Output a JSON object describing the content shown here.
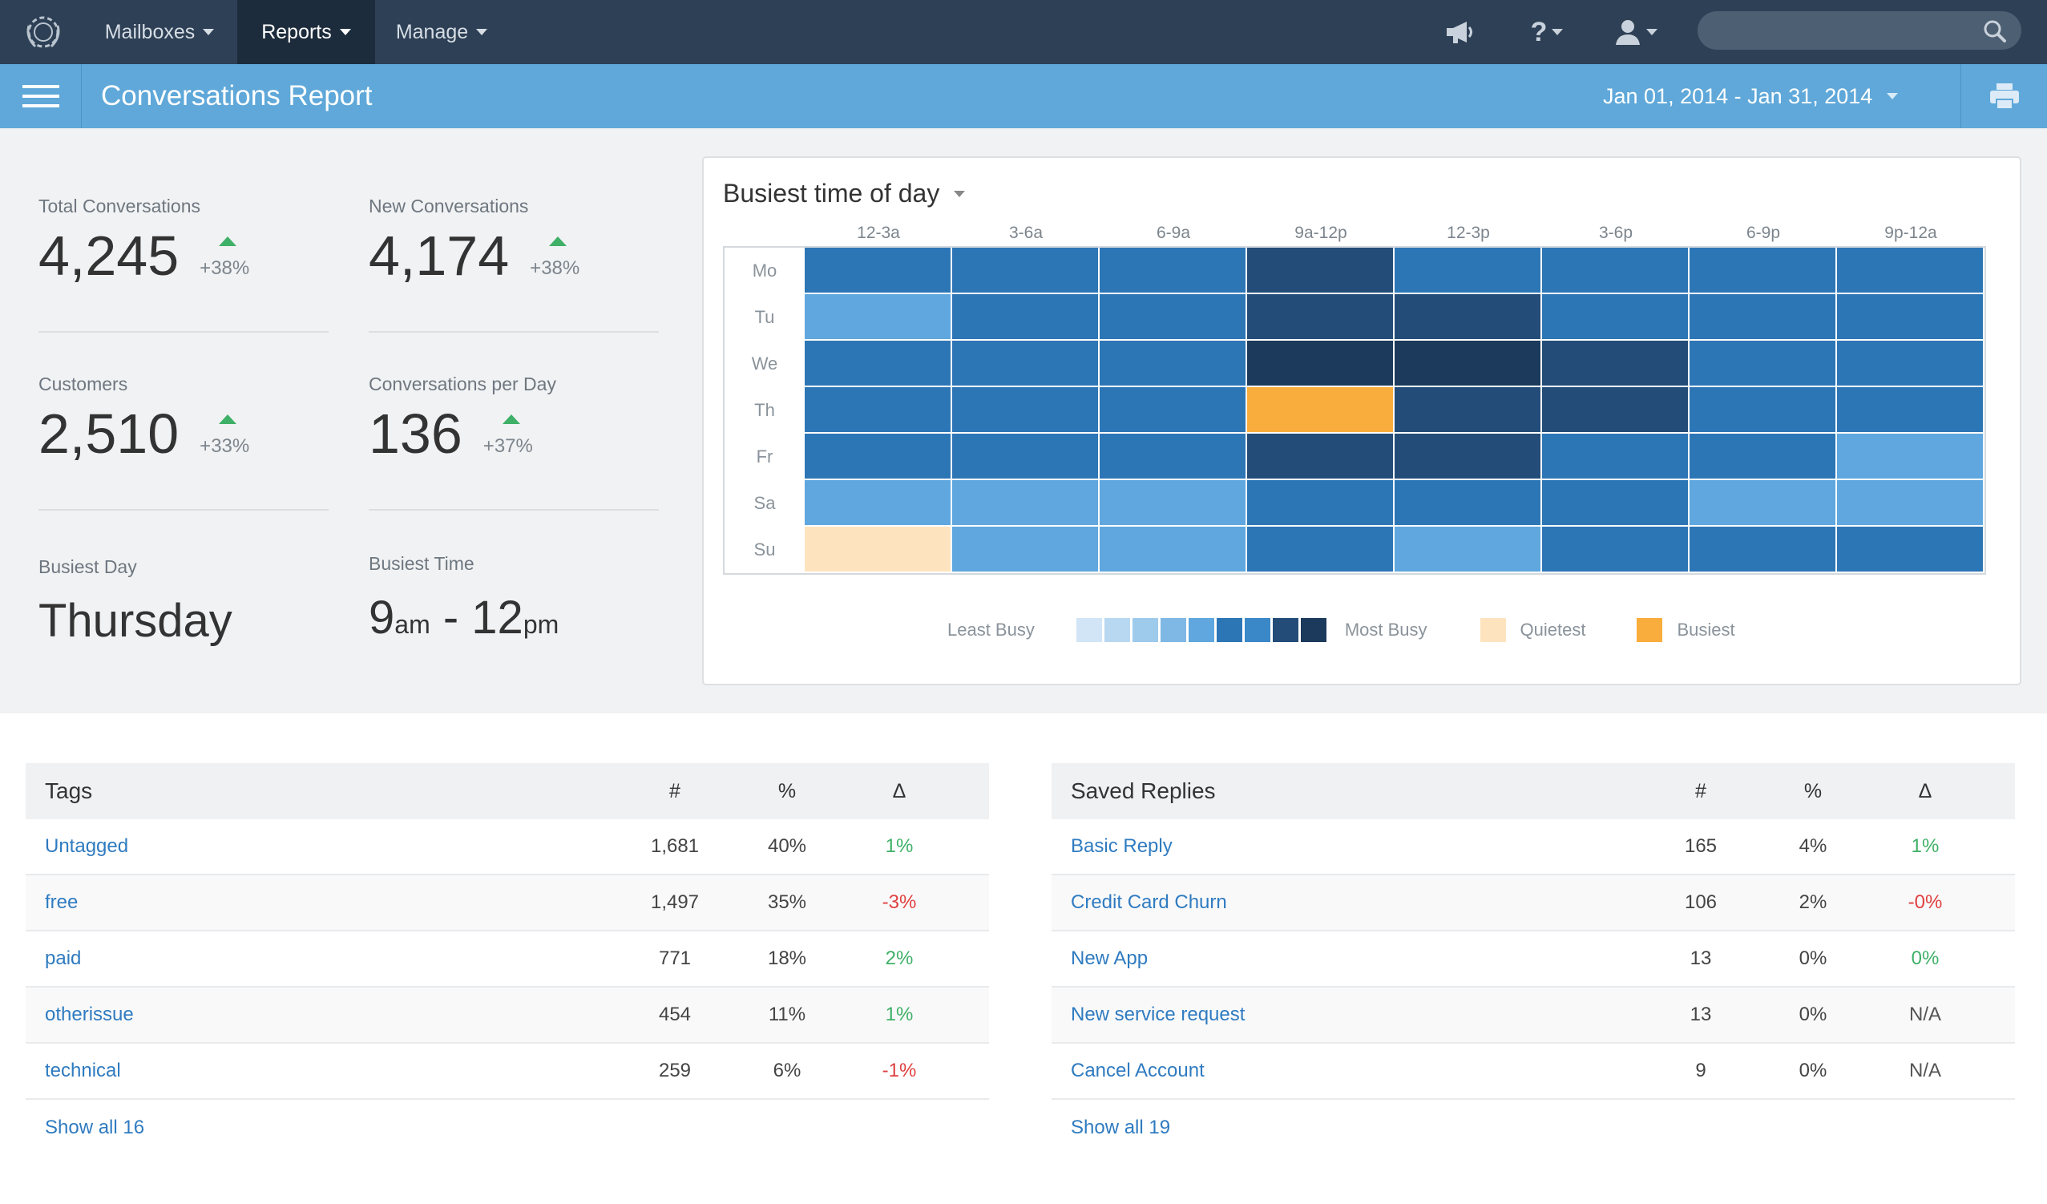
{
  "nav": {
    "items": [
      {
        "label": "Mailboxes",
        "active": false
      },
      {
        "label": "Reports",
        "active": true
      },
      {
        "label": "Manage",
        "active": false
      }
    ],
    "icons": [
      "megaphone-icon",
      "help-icon",
      "user-icon",
      "search-icon"
    ],
    "colors": {
      "bar": "#2e4055",
      "active": "#1d2c3c"
    }
  },
  "header": {
    "title": "Conversations Report",
    "date_range": "Jan 01, 2014 - Jan 31, 2014",
    "accent": "#5fa8d9"
  },
  "stats": {
    "total_conversations": {
      "label": "Total Conversations",
      "value": "4,245",
      "delta": "+38%"
    },
    "new_conversations": {
      "label": "New Conversations",
      "value": "4,174",
      "delta": "+38%"
    },
    "customers": {
      "label": "Customers",
      "value": "2,510",
      "delta": "+33%"
    },
    "conversations_per_day": {
      "label": "Conversations per Day",
      "value": "136",
      "delta": "+37%"
    },
    "busiest_day": {
      "label": "Busiest Day",
      "value": "Thursday"
    },
    "busiest_time": {
      "label": "Busiest Time",
      "start": "9",
      "start_suffix": "am",
      "sep": "-",
      "end": "12",
      "end_suffix": "pm"
    }
  },
  "heatmap": {
    "title": "Busiest time of day",
    "columns": [
      "12-3a",
      "3-6a",
      "6-9a",
      "9a-12p",
      "12-3p",
      "3-6p",
      "6-9p",
      "9p-12a"
    ],
    "rows": [
      "Mo",
      "Tu",
      "We",
      "Th",
      "Fr",
      "Sa",
      "Su"
    ],
    "levels": [
      [
        6,
        6,
        6,
        8,
        6,
        6,
        6,
        6
      ],
      [
        4,
        6,
        6,
        8,
        8,
        6,
        6,
        6
      ],
      [
        6,
        6,
        6,
        9,
        9,
        8,
        6,
        6
      ],
      [
        6,
        6,
        6,
        "busiest",
        8,
        8,
        6,
        6
      ],
      [
        6,
        6,
        6,
        8,
        8,
        6,
        6,
        4
      ],
      [
        4,
        4,
        4,
        6,
        6,
        6,
        4,
        4
      ],
      [
        "quietest",
        4,
        4,
        6,
        4,
        6,
        6,
        6
      ]
    ],
    "scale": [
      "#d1e5f6",
      "#b8d8f1",
      "#9ecaec",
      "#7fb8e4",
      "#5fa7de",
      "#2d76b6",
      "#3a88c8",
      "#234d78",
      "#1b3a5c"
    ],
    "level_colors": {
      "4": "#5fa7de",
      "6": "#2d76b6",
      "8": "#234d78",
      "9": "#1b3a5c",
      "quietest": "#fde4bf",
      "busiest": "#f9ad3c"
    },
    "legend": {
      "least": "Least Busy",
      "most": "Most Busy",
      "quietest": "Quietest",
      "busiest": "Busiest",
      "quietest_color": "#fde4bf",
      "busiest_color": "#f9ad3c"
    }
  },
  "tags": {
    "title": "Tags",
    "col_count": "#",
    "col_pct": "%",
    "col_delta": "Δ",
    "rows": [
      {
        "name": "Untagged",
        "count": "1,681",
        "pct": "40%",
        "delta": "1%",
        "trend": "pos"
      },
      {
        "name": "free",
        "count": "1,497",
        "pct": "35%",
        "delta": "-3%",
        "trend": "neg"
      },
      {
        "name": "paid",
        "count": "771",
        "pct": "18%",
        "delta": "2%",
        "trend": "pos"
      },
      {
        "name": "otherissue",
        "count": "454",
        "pct": "11%",
        "delta": "1%",
        "trend": "pos"
      },
      {
        "name": "technical",
        "count": "259",
        "pct": "6%",
        "delta": "-1%",
        "trend": "neg"
      }
    ],
    "show_all": "Show all 16"
  },
  "saved_replies": {
    "title": "Saved Replies",
    "col_count": "#",
    "col_pct": "%",
    "col_delta": "Δ",
    "rows": [
      {
        "name": "Basic Reply",
        "count": "165",
        "pct": "4%",
        "delta": "1%",
        "trend": "pos"
      },
      {
        "name": "Credit Card Churn",
        "count": "106",
        "pct": "2%",
        "delta": "-0%",
        "trend": "neg"
      },
      {
        "name": "New App",
        "count": "13",
        "pct": "0%",
        "delta": "0%",
        "trend": "pos"
      },
      {
        "name": "New service request",
        "count": "13",
        "pct": "0%",
        "delta": "N/A",
        "trend": "na"
      },
      {
        "name": "Cancel Account",
        "count": "9",
        "pct": "0%",
        "delta": "N/A",
        "trend": "na"
      }
    ],
    "show_all": "Show all 19"
  }
}
